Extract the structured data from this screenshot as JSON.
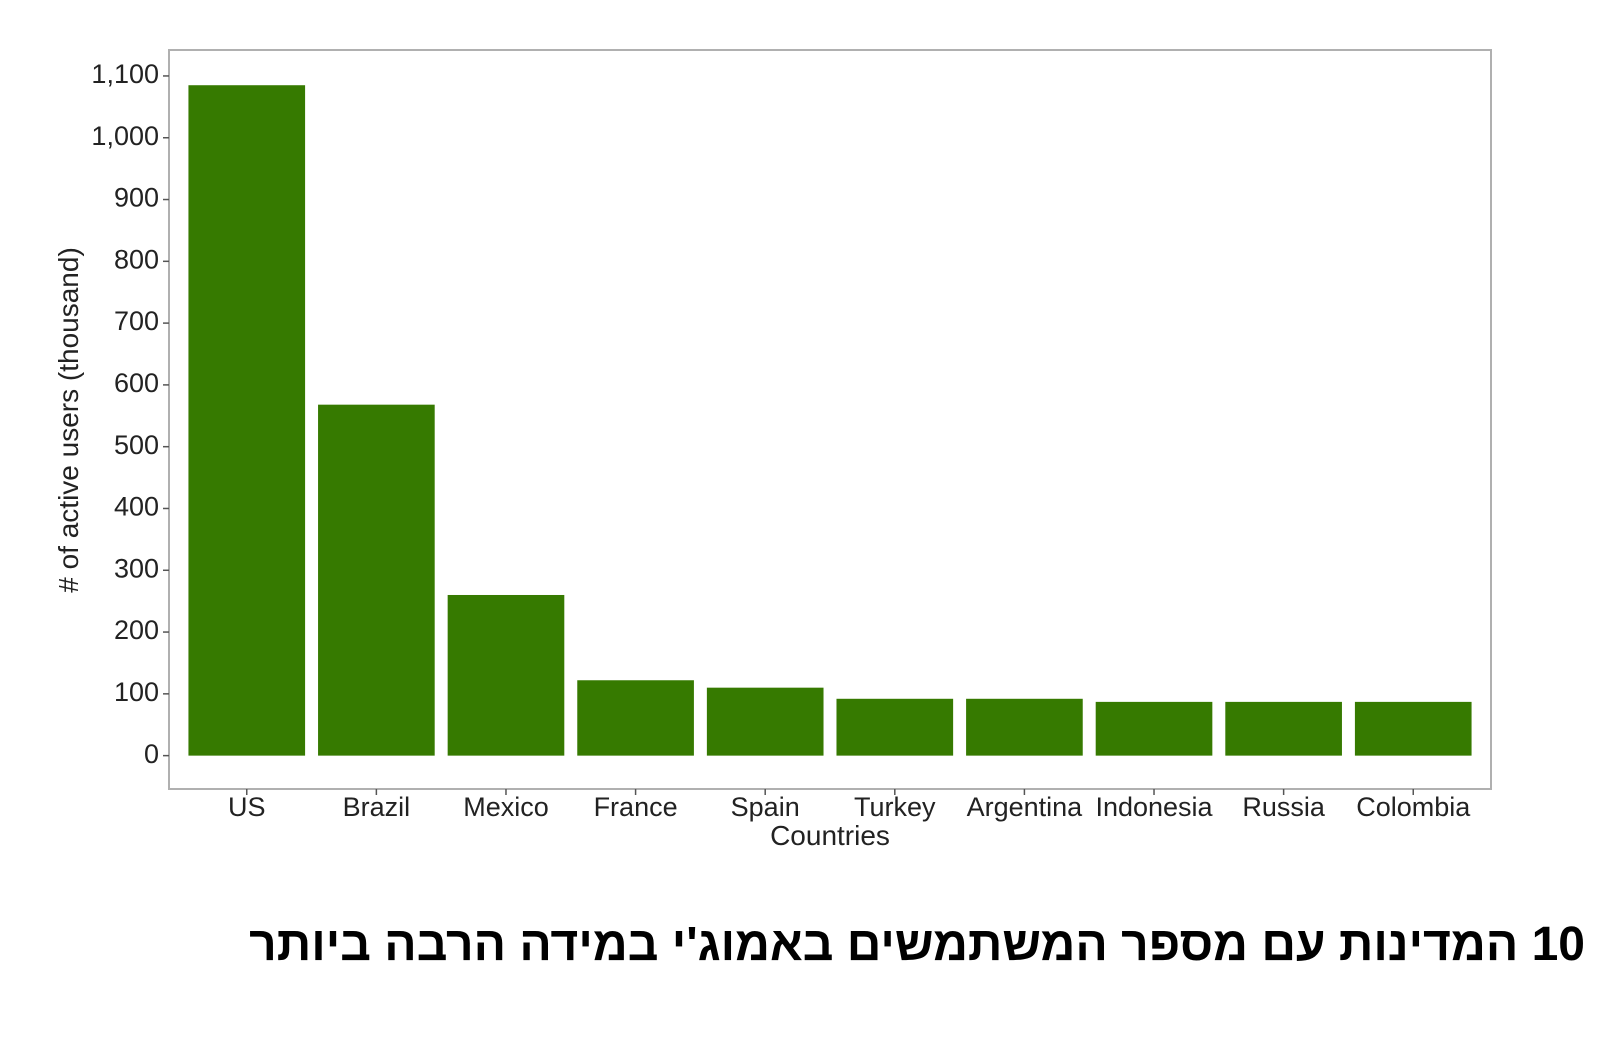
{
  "chart_data": {
    "type": "bar",
    "title": "10 המדינות עם מספר המשתמשים באמוג'י במידה הרבה ביותר",
    "x_label": "Countries",
    "y_label": "# of active users (thousand)",
    "categories": [
      "US",
      "Brazil",
      "Mexico",
      "France",
      "Spain",
      "Turkey",
      "Argentina",
      "Indonesia",
      "Russia",
      "Colombia"
    ],
    "values": [
      1085,
      568,
      260,
      122,
      110,
      92,
      92,
      87,
      87,
      87
    ],
    "color": "#367a00",
    "ylim": [
      -54,
      1142
    ],
    "yticks": [
      0,
      100,
      200,
      300,
      400,
      500,
      600,
      700,
      800,
      900,
      {
        "value": 1000,
        "label": "1,000"
      },
      {
        "value": 1100,
        "label": "1,100"
      }
    ],
    "grid": false
  }
}
